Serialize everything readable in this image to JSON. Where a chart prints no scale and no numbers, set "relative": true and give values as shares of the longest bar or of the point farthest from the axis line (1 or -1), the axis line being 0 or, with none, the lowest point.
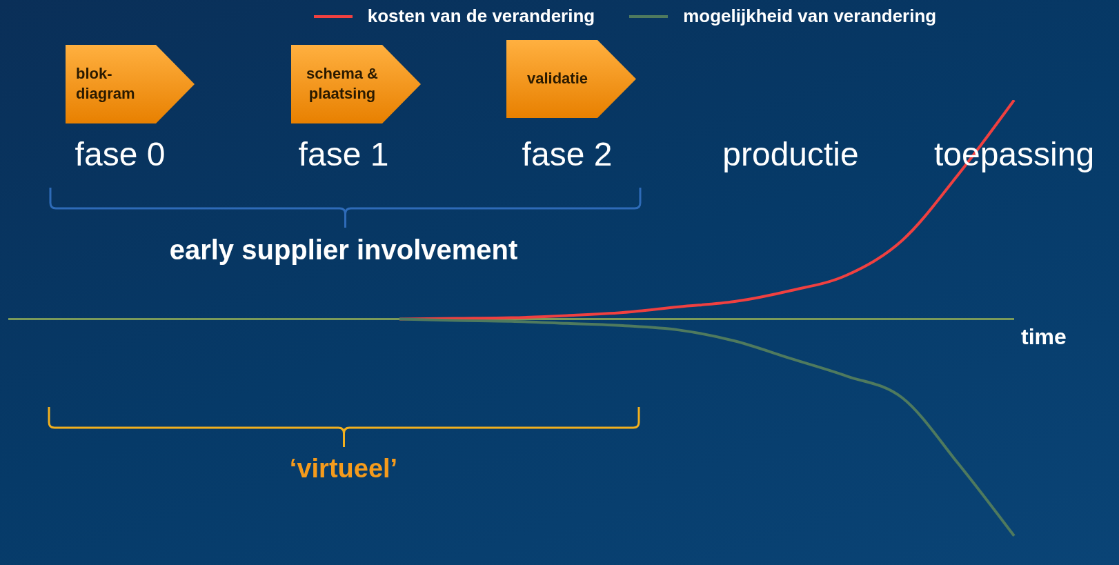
{
  "chart_data": {
    "type": "line",
    "relative": true,
    "categories": [
      null,
      null,
      "fase 0",
      null,
      null,
      null,
      "fase 1",
      null,
      null,
      null,
      "fase 2",
      null,
      null,
      null,
      "productie",
      null,
      null,
      null,
      "toepassing"
    ],
    "series": [
      {
        "name": "kosten van de verandering",
        "color": "#f04040",
        "values": [
          null,
          null,
          null,
          null,
          null,
          null,
          null,
          0,
          0.003,
          0.006,
          0.016,
          0.03,
          0.056,
          0.08,
          0.13,
          0.2,
          0.36,
          0.66,
          1
        ]
      },
      {
        "name": "mogelijkheid van verandering",
        "color": "#4f7a5e",
        "values": [
          null,
          null,
          null,
          null,
          null,
          null,
          null,
          0,
          -0.006,
          -0.01,
          -0.02,
          -0.03,
          -0.05,
          -0.1,
          -0.18,
          -0.26,
          -0.36,
          -0.66,
          -0.99
        ]
      }
    ],
    "xlabel": "time",
    "annotations": [
      "blok-diagram",
      "schema & plaatsing",
      "validatie",
      "early supplier involvement",
      "‘virtueel’"
    ],
    "ref_lines": [
      {
        "axis": "y",
        "value": 0,
        "color": "#7a9a5a"
      }
    ],
    "legend": "top",
    "marker": "none",
    "line_style": "solid"
  }
}
